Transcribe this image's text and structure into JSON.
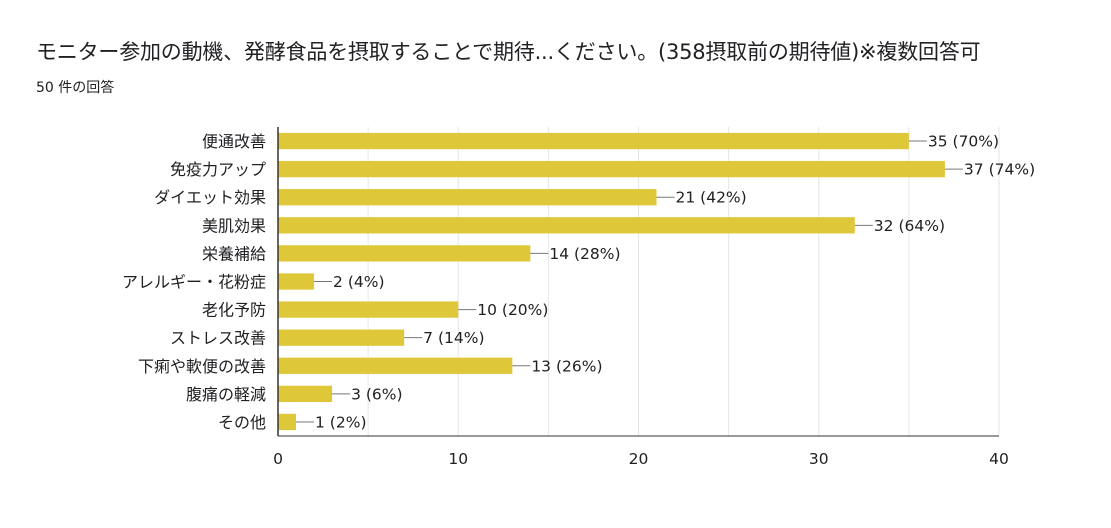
{
  "header": {
    "title": "モニター参加の動機、発酵食品を摂取することで期待...ください。(358摂取前の期待値)※複数回答可",
    "subtitle": "50 件の回答"
  },
  "colors": {
    "bar": "#dfc73a",
    "grid": "#e6e6e6",
    "axis": "#333333",
    "text": "#202124"
  },
  "chart_data": {
    "type": "bar",
    "orientation": "horizontal",
    "title": "",
    "xlabel": "",
    "ylabel": "",
    "xlim": [
      0,
      40
    ],
    "xticks": [
      0,
      10,
      20,
      30,
      40
    ],
    "grid": true,
    "total_responses": 50,
    "categories": [
      "便通改善",
      "免疫力アップ",
      "ダイエット効果",
      "美肌効果",
      "栄養補給",
      "アレルギー・花粉症",
      "老化予防",
      "ストレス改善",
      "下痢や軟便の改善",
      "腹痛の軽減",
      "その他"
    ],
    "values": [
      35,
      37,
      21,
      32,
      14,
      2,
      10,
      7,
      13,
      3,
      1
    ],
    "data_labels": [
      "35 (70%)",
      "37 (74%)",
      "21 (42%)",
      "32 (64%)",
      "14 (28%)",
      "2 (4%)",
      "10 (20%)",
      "7 (14%)",
      "13 (26%)",
      "3 (6%)",
      "1 (2%)"
    ]
  }
}
